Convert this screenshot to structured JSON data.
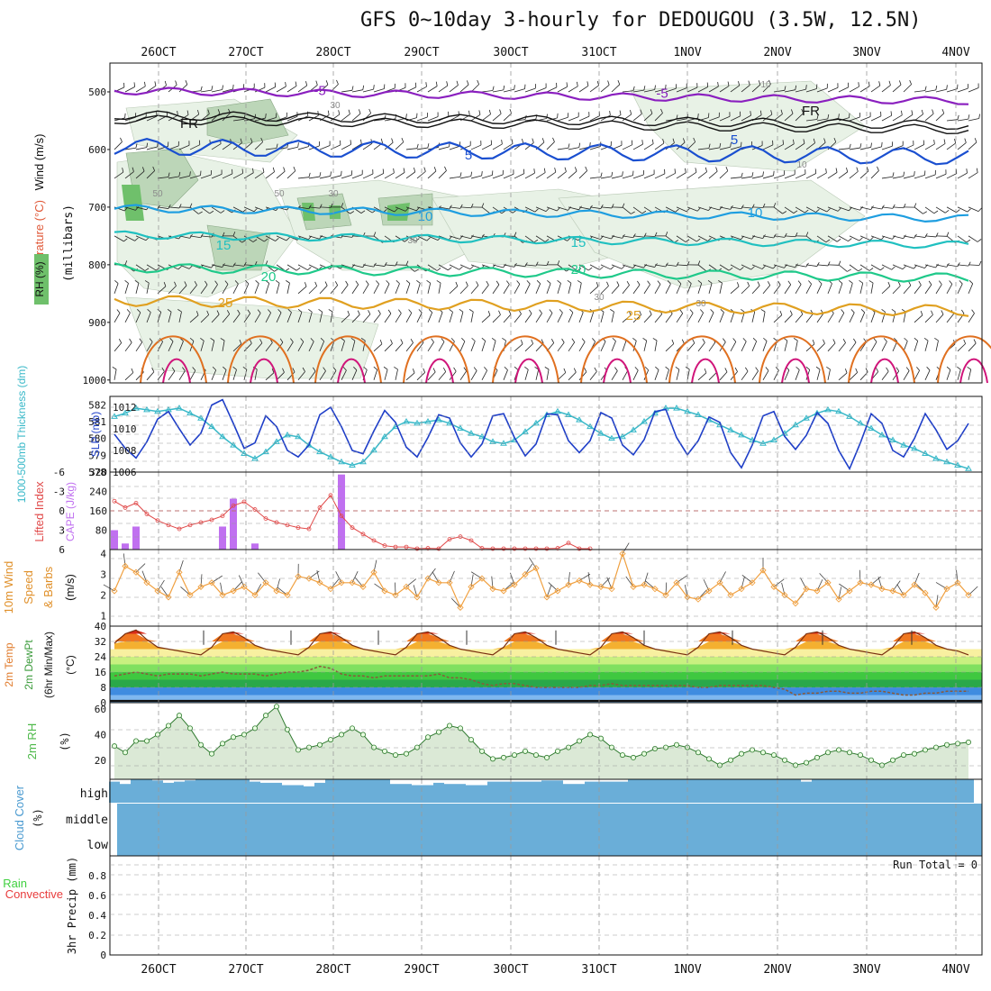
{
  "title": "GFS 0~10day 3-hourly for DEDOUGOU (3.5W, 12.5N)",
  "date_labels": [
    "26OCT",
    "27OCT",
    "28OCT",
    "29OCT",
    "30OCT",
    "31OCT",
    "1NOV",
    "2NOV",
    "3NOV",
    "4NOV"
  ],
  "colors": {
    "rh_fill_light": "#e8f2e6",
    "rh_fill_mid": "#bcd6b8",
    "rh_fill_dark": "#6fc06b",
    "isotherm_m5": "#8a1fbf",
    "freezing": "#111111",
    "isotherm_5": "#1a4fd0",
    "isotherm_10": "#1e9ee0",
    "isotherm_15": "#20c0c0",
    "isotherm_20": "#1fc98a",
    "isotherm_25": "#e0a020",
    "isotherm_30": "#e07020",
    "isotherm_35": "#d0157a",
    "thickness": "#38b8c8",
    "slp": "#1e3ec8",
    "lifted_index": "#e04848",
    "cape": "#c070f0",
    "wind10m": "#f0a040",
    "rh2m": "#4cb848",
    "cloud": "#6aaed8",
    "precip_total": "#3fd03f",
    "precip_conv": "#e83c3c",
    "grid": "#9a9a9a"
  },
  "panels": {
    "upper_air": {
      "ylabel_parts": [
        "Wind (m/s)",
        "Temperature (°C)",
        "RH (%)"
      ],
      "ylabel_right": "(millibars)",
      "ticks": [
        "500",
        "600",
        "700",
        "800",
        "900",
        "1000"
      ],
      "rh_labels": [
        "10",
        "30",
        "50",
        "30",
        "50",
        "30",
        "30",
        "30",
        "10"
      ],
      "isotherm_labels": [
        "-5",
        "-5",
        "FR",
        "FR",
        "5",
        "5",
        "10",
        "10",
        "15",
        "15",
        "20",
        "20",
        "25",
        "25"
      ]
    },
    "thickness_slp": {
      "ylabel_left": "1000-500mb Thickness (dm)",
      "ylabel_right": "SLP (mb)",
      "left_ticks": [
        "582",
        "581",
        "580",
        "579",
        "578"
      ],
      "right_ticks": [
        "1012",
        "1010",
        "1008",
        "1006"
      ]
    },
    "cape_li": {
      "ylabel_left": "Lifted Index",
      "ylabel_right": "CAPE (J/kg)",
      "left_ticks": [
        "-6",
        "-3",
        "0",
        "3",
        "6"
      ],
      "right_ticks": [
        "320",
        "240",
        "160",
        "80"
      ]
    },
    "wind10m": {
      "ylabel": [
        "10m Wind",
        "Speed",
        "& Barbs",
        "(m/s)"
      ],
      "ticks": [
        "4",
        "3",
        "2",
        "1"
      ]
    },
    "temp2m": {
      "ylabel": [
        "2m Temp",
        "2m DewPt",
        "(6hr Min/Max)",
        "(°C)"
      ],
      "ticks": [
        "40",
        "32",
        "24",
        "16",
        "8",
        "0"
      ]
    },
    "rh2m": {
      "ylabel": [
        "2m RH",
        "(%)"
      ],
      "ticks": [
        "60",
        "40",
        "20"
      ]
    },
    "cloud": {
      "ylabel": [
        "Cloud Cover",
        "(%)"
      ],
      "levels": [
        "high",
        "middle",
        "low"
      ]
    },
    "precip": {
      "ylabel": [
        "Total / Rain",
        "Convective",
        "3hr Precip (mm)"
      ],
      "ticks": [
        "0.8",
        "0.6",
        "0.4",
        "0.2",
        "0"
      ],
      "run_total": "Run Total = 0"
    }
  },
  "chart_data": {
    "type": "line",
    "x_step_hours": 3,
    "x_points": 80,
    "series": [
      {
        "name": "Thickness (dm)",
        "values": [
          581.3,
          581.5,
          581.8,
          581.7,
          581.6,
          581.7,
          581.8,
          581.5,
          581.2,
          580.7,
          580.1,
          579.6,
          579.1,
          578.8,
          579.2,
          579.8,
          580.2,
          580.1,
          579.6,
          579.2,
          578.9,
          578.6,
          578.4,
          578.6,
          579.3,
          580.1,
          580.7,
          581.0,
          580.9,
          581.0,
          581.1,
          580.9,
          580.6,
          580.3,
          580.1,
          579.8,
          579.7,
          579.9,
          580.4,
          580.9,
          581.4,
          581.6,
          581.4,
          581.1,
          580.7,
          580.3,
          580.0,
          580.1,
          580.5,
          581.0,
          581.5,
          581.8,
          581.8,
          581.6,
          581.4,
          581.1,
          580.8,
          580.5,
          580.2,
          579.9,
          579.7,
          579.9,
          580.3,
          580.8,
          581.2,
          581.5,
          581.7,
          581.6,
          581.3,
          580.9,
          580.6,
          580.2,
          579.9,
          579.6,
          579.4,
          579.1,
          578.8,
          578.6,
          578.4,
          578.2
        ]
      },
      {
        "name": "SLP (mb)",
        "values": [
          1009.5,
          1008.2,
          1007.3,
          1008.8,
          1010.9,
          1011.6,
          1010.0,
          1008.5,
          1009.6,
          1012.2,
          1012.7,
          1010.5,
          1008.2,
          1008.7,
          1011.2,
          1010.2,
          1008.0,
          1007.4,
          1008.5,
          1011.3,
          1012.0,
          1010.2,
          1008.0,
          1007.7,
          1009.8,
          1011.7,
          1010.6,
          1008.3,
          1007.4,
          1009.2,
          1011.3,
          1011.0,
          1008.7,
          1007.4,
          1008.6,
          1011.2,
          1011.4,
          1009.2,
          1007.5,
          1008.6,
          1011.4,
          1011.3,
          1008.9,
          1007.8,
          1008.9,
          1011.5,
          1011.0,
          1008.5,
          1007.6,
          1009.0,
          1011.6,
          1011.8,
          1009.2,
          1007.6,
          1008.9,
          1011.1,
          1010.6,
          1007.8,
          1006.4,
          1008.5,
          1011.2,
          1011.6,
          1009.3,
          1008.1,
          1009.4,
          1011.5,
          1010.5,
          1008.0,
          1006.3,
          1008.7,
          1011.4,
          1010.5,
          1008.0,
          1007.4,
          1009.1,
          1011.4,
          1009.9,
          1008.1,
          1008.9,
          1010.5
        ]
      },
      {
        "name": "Lifted Index",
        "values": [
          -1.5,
          -0.5,
          -1.2,
          0.5,
          1.5,
          2.2,
          2.8,
          2.2,
          1.8,
          1.4,
          0.8,
          -0.8,
          -1.4,
          -0.2,
          1.2,
          1.8,
          2.2,
          2.6,
          2.8,
          -0.5,
          -2.4,
          0.8,
          2.6,
          3.6,
          4.6,
          5.4,
          5.6,
          5.6,
          5.9,
          5.8,
          5.9,
          4.4,
          4.0,
          4.6,
          5.8,
          6.0,
          6.0,
          6.2,
          6.2,
          6.4,
          6.4,
          5.8,
          5.0,
          6.0,
          6.2,
          6.2,
          6.4,
          6.4,
          6.2,
          6.2,
          6.6,
          6.4,
          6.4,
          6.2,
          6.2,
          6.4,
          6.4,
          6.4,
          6.4,
          6.4,
          6.4,
          6.4,
          6.4,
          6.4,
          6.4,
          6.4,
          6.4,
          6.4,
          6.4,
          6.4,
          6.4,
          6.4,
          6.4,
          6.4,
          6.4,
          6.4,
          6.4,
          6.2,
          6.2,
          6.6
        ]
      },
      {
        "name": "CAPE (J/kg)",
        "values": [
          80,
          25,
          95,
          0,
          0,
          0,
          0,
          0,
          0,
          0,
          95,
          210,
          0,
          25,
          0,
          0,
          0,
          0,
          0,
          0,
          0,
          310,
          0,
          0,
          0,
          0,
          0,
          0,
          0,
          0,
          0,
          0,
          0,
          0,
          0,
          0,
          0,
          0,
          0,
          0,
          0,
          0,
          0,
          0,
          0,
          0,
          0,
          0,
          0,
          0,
          0,
          0,
          0,
          0,
          0,
          0,
          0,
          0,
          0,
          0,
          0,
          0,
          0,
          0,
          0,
          0,
          0,
          0,
          0,
          0,
          0,
          0,
          0,
          0,
          0,
          0,
          0,
          0,
          0,
          0
        ]
      },
      {
        "name": "10m Wind Speed (m/s)",
        "values": [
          2.2,
          3.4,
          3.1,
          2.6,
          2.2,
          1.9,
          3.1,
          2.0,
          2.4,
          2.6,
          2.0,
          2.2,
          2.4,
          2.0,
          2.6,
          2.2,
          2.0,
          2.9,
          2.8,
          2.6,
          2.3,
          2.6,
          2.6,
          2.4,
          3.1,
          2.2,
          2.0,
          2.4,
          1.9,
          2.8,
          2.6,
          2.6,
          1.4,
          2.4,
          2.8,
          2.3,
          2.2,
          2.5,
          3.0,
          3.3,
          1.9,
          2.2,
          2.5,
          2.7,
          2.5,
          2.4,
          2.3,
          4.0,
          2.4,
          2.5,
          2.3,
          2.0,
          2.6,
          1.9,
          1.8,
          2.2,
          2.6,
          2.0,
          2.3,
          2.6,
          3.2,
          2.4,
          2.0,
          1.6,
          2.3,
          2.2,
          2.6,
          1.8,
          2.2,
          2.6,
          2.5,
          2.3,
          2.2,
          2.0,
          2.5,
          2.1,
          1.4,
          2.3,
          2.6,
          2.0
        ]
      },
      {
        "name": "2m Temp (°C)",
        "values": [
          31,
          36,
          38,
          33,
          29,
          28,
          27,
          26,
          25,
          29,
          36,
          37,
          34,
          30,
          28,
          27,
          26,
          25,
          29,
          36,
          37,
          34,
          30,
          28,
          27,
          26,
          25,
          29,
          36,
          37,
          34,
          30,
          28,
          27,
          26,
          25,
          29,
          36,
          37,
          34,
          30,
          28,
          27,
          26,
          25,
          29,
          36,
          37,
          34,
          30,
          28,
          27,
          26,
          25,
          29,
          36,
          37,
          34,
          30,
          28,
          27,
          26,
          25,
          29,
          36,
          37,
          34,
          30,
          28,
          27,
          26,
          25,
          29,
          36,
          37,
          34,
          30,
          28,
          27,
          25
        ]
      },
      {
        "name": "2m DewPt (°C)",
        "values": [
          14,
          15,
          16,
          15,
          14,
          15,
          15,
          15,
          14,
          15,
          16,
          15,
          15,
          15,
          14,
          15,
          16,
          16,
          17,
          19,
          18,
          15,
          14,
          14,
          13,
          14,
          14,
          14,
          14,
          14,
          15,
          13,
          13,
          12,
          10,
          9,
          10,
          10,
          9,
          8,
          8,
          8,
          8,
          8,
          9,
          9,
          10,
          9,
          9,
          9,
          9,
          9,
          9,
          9,
          8,
          8,
          9,
          9,
          9,
          9,
          9,
          8,
          7,
          4,
          5,
          5,
          6,
          6,
          5,
          5,
          6,
          6,
          5,
          4,
          4,
          5,
          5,
          6,
          6,
          6
        ]
      },
      {
        "name": "2m RH (%)",
        "values": [
          31,
          26,
          35,
          35,
          40,
          47,
          55,
          45,
          32,
          25,
          33,
          38,
          40,
          45,
          55,
          62,
          44,
          28,
          30,
          32,
          36,
          40,
          45,
          40,
          30,
          27,
          24,
          25,
          30,
          38,
          42,
          47,
          45,
          36,
          27,
          21,
          22,
          24,
          27,
          24,
          22,
          27,
          30,
          35,
          40,
          37,
          30,
          24,
          22,
          25,
          29,
          30,
          32,
          30,
          26,
          21,
          16,
          20,
          25,
          28,
          26,
          24,
          20,
          16,
          18,
          22,
          26,
          28,
          26,
          24,
          20,
          16,
          20,
          24,
          25,
          28,
          30,
          32,
          33,
          34
        ]
      },
      {
        "name": "Cloud Cover high",
        "values": [
          90,
          80,
          100,
          100,
          95,
          85,
          90,
          95,
          100,
          100,
          100,
          100,
          100,
          90,
          85,
          85,
          75,
          75,
          70,
          85,
          100,
          100,
          100,
          100,
          100,
          100,
          80,
          80,
          75,
          75,
          85,
          80,
          80,
          75,
          75,
          90,
          90,
          90,
          90,
          90,
          95,
          95,
          80,
          80,
          90,
          90,
          90,
          90,
          100,
          100,
          100,
          100,
          100,
          100,
          100,
          100,
          100,
          100,
          100,
          100,
          100,
          100,
          100,
          100,
          90,
          100,
          100,
          100,
          100,
          100,
          100,
          100,
          100,
          100,
          100,
          100,
          100,
          100,
          100,
          100
        ]
      }
    ],
    "ylim": {
      "thickness": [
        578,
        582.5
      ],
      "slp": [
        1006,
        1013
      ],
      "lifted_index": [
        6,
        -6
      ],
      "cape": [
        0,
        320
      ],
      "wind10m": [
        0.5,
        4.2
      ],
      "temp2m": [
        0,
        40
      ],
      "rh2m": [
        5,
        65
      ],
      "precip": [
        0,
        1
      ]
    }
  }
}
